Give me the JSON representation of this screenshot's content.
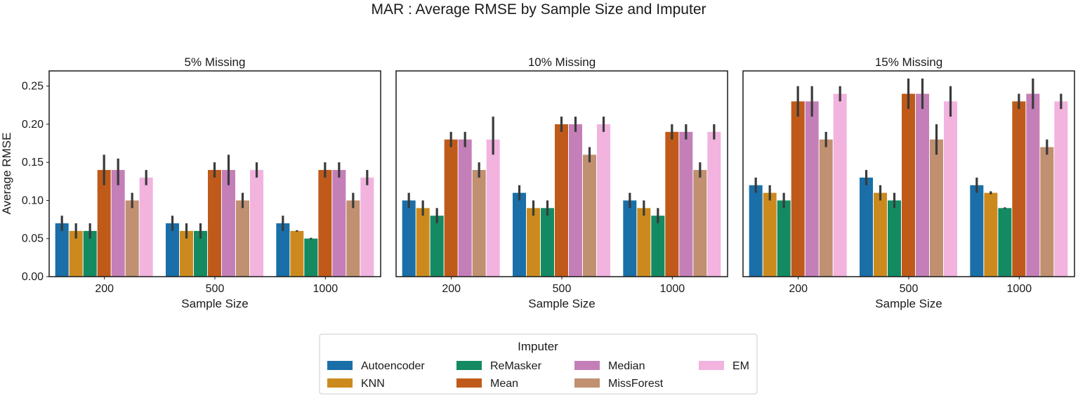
{
  "chart_data": {
    "type": "bar",
    "title": "MAR : Average RMSE by Sample Size and Imputer",
    "ylabel": "Average RMSE",
    "ylim": [
      0,
      0.27
    ],
    "yticks": [
      "0.00",
      "0.05",
      "0.10",
      "0.15",
      "0.20",
      "0.25"
    ],
    "legend": {
      "title": "Imputer",
      "placement": "bottom-center",
      "colors": [
        "#1a6fa8",
        "#cc8a1e",
        "#138a62",
        "#c05a1a",
        "#c47fb8",
        "#c09070",
        "#f2b3df"
      ]
    },
    "series_names": [
      "Autoencoder",
      "KNN",
      "ReMasker",
      "Mean",
      "Median",
      "MissForest",
      "EM"
    ],
    "panels": [
      {
        "title": "5% Missing",
        "xlabel": "Sample Size",
        "categories": [
          "200",
          "500",
          "1000"
        ],
        "series": [
          {
            "name": "Autoencoder",
            "values": [
              0.07,
              0.07,
              0.07
            ],
            "ci": [
              [
                0.06,
                0.08
              ],
              [
                0.06,
                0.08
              ],
              [
                0.06,
                0.08
              ]
            ]
          },
          {
            "name": "KNN",
            "values": [
              0.06,
              0.06,
              0.06
            ],
            "ci": [
              [
                0.05,
                0.07
              ],
              [
                0.05,
                0.07
              ],
              [
                0.059,
                0.061
              ]
            ]
          },
          {
            "name": "ReMasker",
            "values": [
              0.06,
              0.06,
              0.05
            ],
            "ci": [
              [
                0.05,
                0.07
              ],
              [
                0.05,
                0.07
              ],
              [
                0.049,
                0.051
              ]
            ]
          },
          {
            "name": "Mean",
            "values": [
              0.14,
              0.14,
              0.14
            ],
            "ci": [
              [
                0.12,
                0.16
              ],
              [
                0.13,
                0.15
              ],
              [
                0.13,
                0.15
              ]
            ]
          },
          {
            "name": "Median",
            "values": [
              0.14,
              0.14,
              0.14
            ],
            "ci": [
              [
                0.12,
                0.155
              ],
              [
                0.12,
                0.16
              ],
              [
                0.13,
                0.15
              ]
            ]
          },
          {
            "name": "MissForest",
            "values": [
              0.1,
              0.1,
              0.1
            ],
            "ci": [
              [
                0.09,
                0.11
              ],
              [
                0.09,
                0.11
              ],
              [
                0.09,
                0.11
              ]
            ]
          },
          {
            "name": "EM",
            "values": [
              0.13,
              0.14,
              0.13
            ],
            "ci": [
              [
                0.12,
                0.14
              ],
              [
                0.13,
                0.15
              ],
              [
                0.12,
                0.14
              ]
            ]
          }
        ]
      },
      {
        "title": "10% Missing",
        "xlabel": "Sample Size",
        "categories": [
          "200",
          "500",
          "1000"
        ],
        "series": [
          {
            "name": "Autoencoder",
            "values": [
              0.1,
              0.11,
              0.1
            ],
            "ci": [
              [
                0.09,
                0.11
              ],
              [
                0.1,
                0.12
              ],
              [
                0.09,
                0.11
              ]
            ]
          },
          {
            "name": "KNN",
            "values": [
              0.09,
              0.09,
              0.09
            ],
            "ci": [
              [
                0.08,
                0.1
              ],
              [
                0.08,
                0.1
              ],
              [
                0.08,
                0.1
              ]
            ]
          },
          {
            "name": "ReMasker",
            "values": [
              0.08,
              0.09,
              0.08
            ],
            "ci": [
              [
                0.07,
                0.09
              ],
              [
                0.08,
                0.1
              ],
              [
                0.07,
                0.09
              ]
            ]
          },
          {
            "name": "Mean",
            "values": [
              0.18,
              0.2,
              0.19
            ],
            "ci": [
              [
                0.17,
                0.19
              ],
              [
                0.19,
                0.21
              ],
              [
                0.18,
                0.2
              ]
            ]
          },
          {
            "name": "Median",
            "values": [
              0.18,
              0.2,
              0.19
            ],
            "ci": [
              [
                0.17,
                0.19
              ],
              [
                0.19,
                0.21
              ],
              [
                0.18,
                0.2
              ]
            ]
          },
          {
            "name": "MissForest",
            "values": [
              0.14,
              0.16,
              0.14
            ],
            "ci": [
              [
                0.13,
                0.15
              ],
              [
                0.15,
                0.17
              ],
              [
                0.13,
                0.15
              ]
            ]
          },
          {
            "name": "EM",
            "values": [
              0.18,
              0.2,
              0.19
            ],
            "ci": [
              [
                0.16,
                0.21
              ],
              [
                0.19,
                0.21
              ],
              [
                0.18,
                0.2
              ]
            ]
          }
        ]
      },
      {
        "title": "15% Missing",
        "xlabel": "Sample Size",
        "categories": [
          "200",
          "500",
          "1000"
        ],
        "series": [
          {
            "name": "Autoencoder",
            "values": [
              0.12,
              0.13,
              0.12
            ],
            "ci": [
              [
                0.11,
                0.13
              ],
              [
                0.12,
                0.14
              ],
              [
                0.11,
                0.13
              ]
            ]
          },
          {
            "name": "KNN",
            "values": [
              0.11,
              0.11,
              0.11
            ],
            "ci": [
              [
                0.1,
                0.12
              ],
              [
                0.1,
                0.12
              ],
              [
                0.108,
                0.112
              ]
            ]
          },
          {
            "name": "ReMasker",
            "values": [
              0.1,
              0.1,
              0.09
            ],
            "ci": [
              [
                0.09,
                0.11
              ],
              [
                0.09,
                0.11
              ],
              [
                0.089,
                0.091
              ]
            ]
          },
          {
            "name": "Mean",
            "values": [
              0.23,
              0.24,
              0.23
            ],
            "ci": [
              [
                0.21,
                0.25
              ],
              [
                0.22,
                0.26
              ],
              [
                0.22,
                0.24
              ]
            ]
          },
          {
            "name": "Median",
            "values": [
              0.23,
              0.24,
              0.24
            ],
            "ci": [
              [
                0.21,
                0.25
              ],
              [
                0.22,
                0.26
              ],
              [
                0.22,
                0.26
              ]
            ]
          },
          {
            "name": "MissForest",
            "values": [
              0.18,
              0.18,
              0.17
            ],
            "ci": [
              [
                0.17,
                0.19
              ],
              [
                0.16,
                0.2
              ],
              [
                0.16,
                0.18
              ]
            ]
          },
          {
            "name": "EM",
            "values": [
              0.24,
              0.23,
              0.23
            ],
            "ci": [
              [
                0.23,
                0.25
              ],
              [
                0.21,
                0.25
              ],
              [
                0.22,
                0.24
              ]
            ]
          }
        ]
      }
    ]
  }
}
